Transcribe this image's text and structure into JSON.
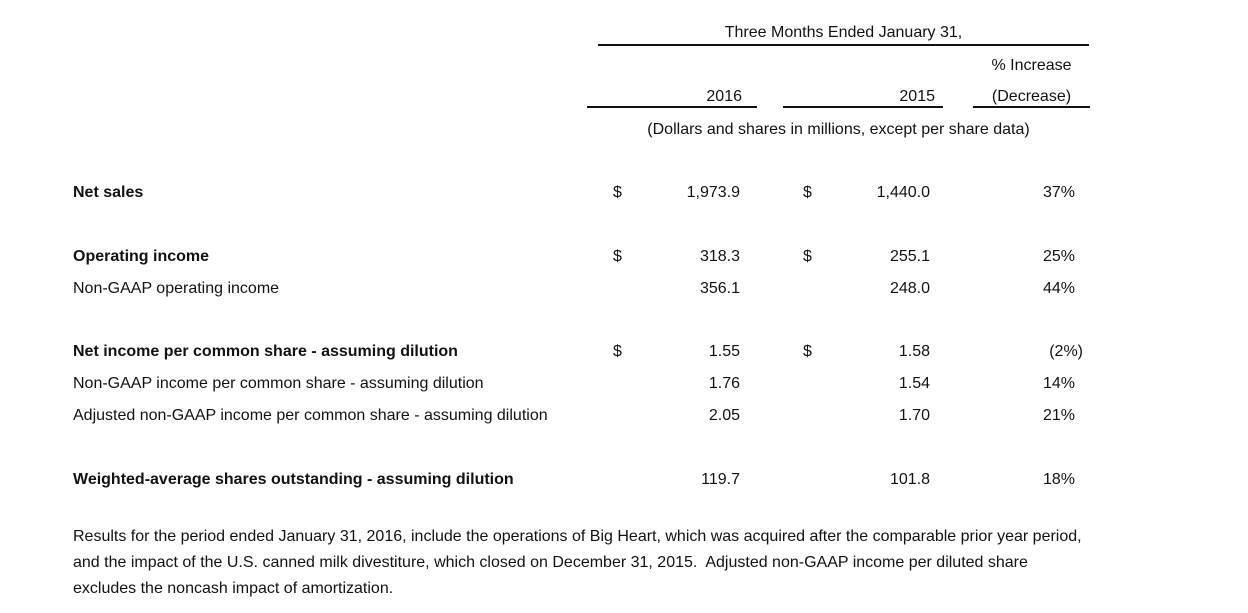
{
  "header": {
    "period": "Three Months Ended January 31,",
    "year_2016": "2016",
    "year_2015": "2015",
    "pct_line1": "% Increase",
    "pct_line2": "(Decrease)",
    "units_note": "(Dollars and shares in millions, except per share data)"
  },
  "rows": [
    {
      "label": "Net sales",
      "cur1": "$",
      "v2016": "1,973.9",
      "cur2": "$",
      "v2015": "1,440.0",
      "change": "37%"
    },
    {
      "label": "Operating income",
      "cur1": "$",
      "v2016": "318.3",
      "cur2": "$",
      "v2015": "255.1",
      "change": "25%"
    },
    {
      "label": "Non-GAAP operating income",
      "cur1": "",
      "v2016": "356.1",
      "cur2": "",
      "v2015": "248.0",
      "change": "44%"
    },
    {
      "label": "Net income per common share - assuming dilution",
      "cur1": "$",
      "v2016": "1.55",
      "cur2": "$",
      "v2015": "1.58",
      "change": "(2%)"
    },
    {
      "label": "Non-GAAP income per common share - assuming dilution",
      "cur1": "",
      "v2016": "1.76",
      "cur2": "",
      "v2015": "1.54",
      "change": "14%"
    },
    {
      "label": "Adjusted non-GAAP income per common share - assuming dilution",
      "cur1": "",
      "v2016": "2.05",
      "cur2": "",
      "v2015": "1.70",
      "change": "21%"
    },
    {
      "label": "Weighted-average shares outstanding - assuming dilution",
      "cur1": "",
      "v2016": "119.7",
      "cur2": "",
      "v2015": "101.8",
      "change": "18%"
    }
  ],
  "footnote": {
    "line1": "Results for the period ended January 31, 2016, include the operations of Big Heart, which was acquired after the comparable prior year period,",
    "line2": "and the impact of the U.S. canned milk divestiture, which closed on December 31, 2015.  Adjusted non-GAAP income per diluted share",
    "line3": "excludes the noncash impact of amortization."
  }
}
